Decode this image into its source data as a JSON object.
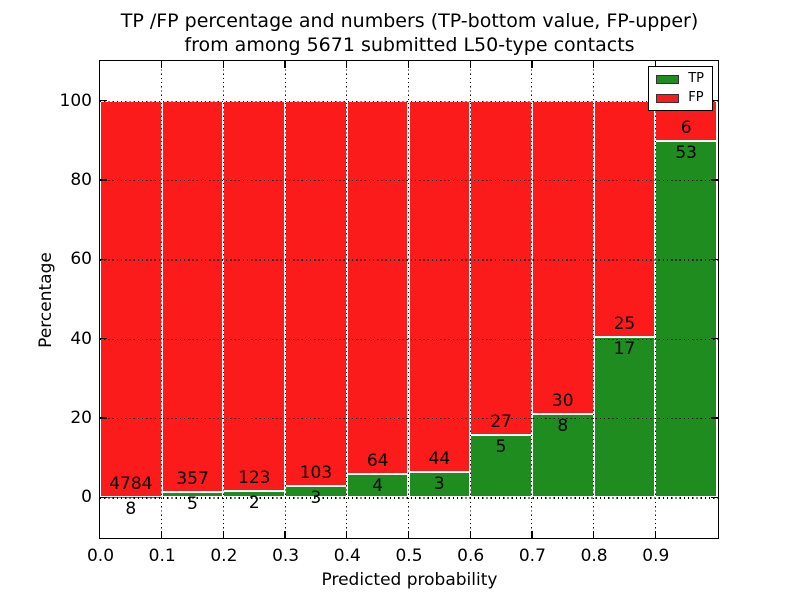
{
  "figure": {
    "background": "#ffffff",
    "title_line1": "TP /FP percentage and numbers (TP-bottom value, FP-upper)",
    "title_line2": "from among 5671 submitted L50-type contacts"
  },
  "chart_data": {
    "type": "bar",
    "stacked": true,
    "orientation": "vertical",
    "title": "TP /FP percentage and numbers (TP-bottom value, FP-upper) from among 5671 submitted L50-type contacts",
    "xlabel": "Predicted probability",
    "ylabel": "Percentage",
    "total_contacts": 5671,
    "xlim": [
      0.0,
      1.0
    ],
    "ylim": [
      -10,
      110
    ],
    "bin_width": 0.1,
    "categories": [
      "0.0-0.1",
      "0.1-0.2",
      "0.2-0.3",
      "0.3-0.4",
      "0.4-0.5",
      "0.5-0.6",
      "0.6-0.7",
      "0.7-0.8",
      "0.8-0.9",
      "0.9-1.0"
    ],
    "x_tick_labels": [
      "0.0",
      "0.1",
      "0.2",
      "0.3",
      "0.4",
      "0.5",
      "0.6",
      "0.7",
      "0.8",
      "0.9"
    ],
    "y_tick_values": [
      0,
      20,
      40,
      60,
      80,
      100
    ],
    "y_tick_labels": [
      "0",
      "20",
      "40",
      "60",
      "80",
      "100"
    ],
    "series": [
      {
        "name": "TP",
        "color": "#1e8c1e",
        "stack_position": "bottom",
        "counts": [
          8,
          5,
          2,
          3,
          4,
          3,
          5,
          8,
          17,
          53
        ]
      },
      {
        "name": "FP",
        "color": "#fb1b1b",
        "stack_position": "top",
        "counts": [
          4784,
          357,
          123,
          103,
          64,
          44,
          27,
          30,
          25,
          6
        ]
      }
    ],
    "bar_display": "each bar normalized to 100%, segment labels show raw counts",
    "bar_edge_color": "#ffffff",
    "grid": {
      "style": "dotted",
      "color": "#000000"
    },
    "legend": {
      "position": "upper-right",
      "entries": [
        {
          "label": "TP",
          "color": "#1e8c1e"
        },
        {
          "label": "FP",
          "color": "#fb1b1b"
        }
      ]
    }
  }
}
